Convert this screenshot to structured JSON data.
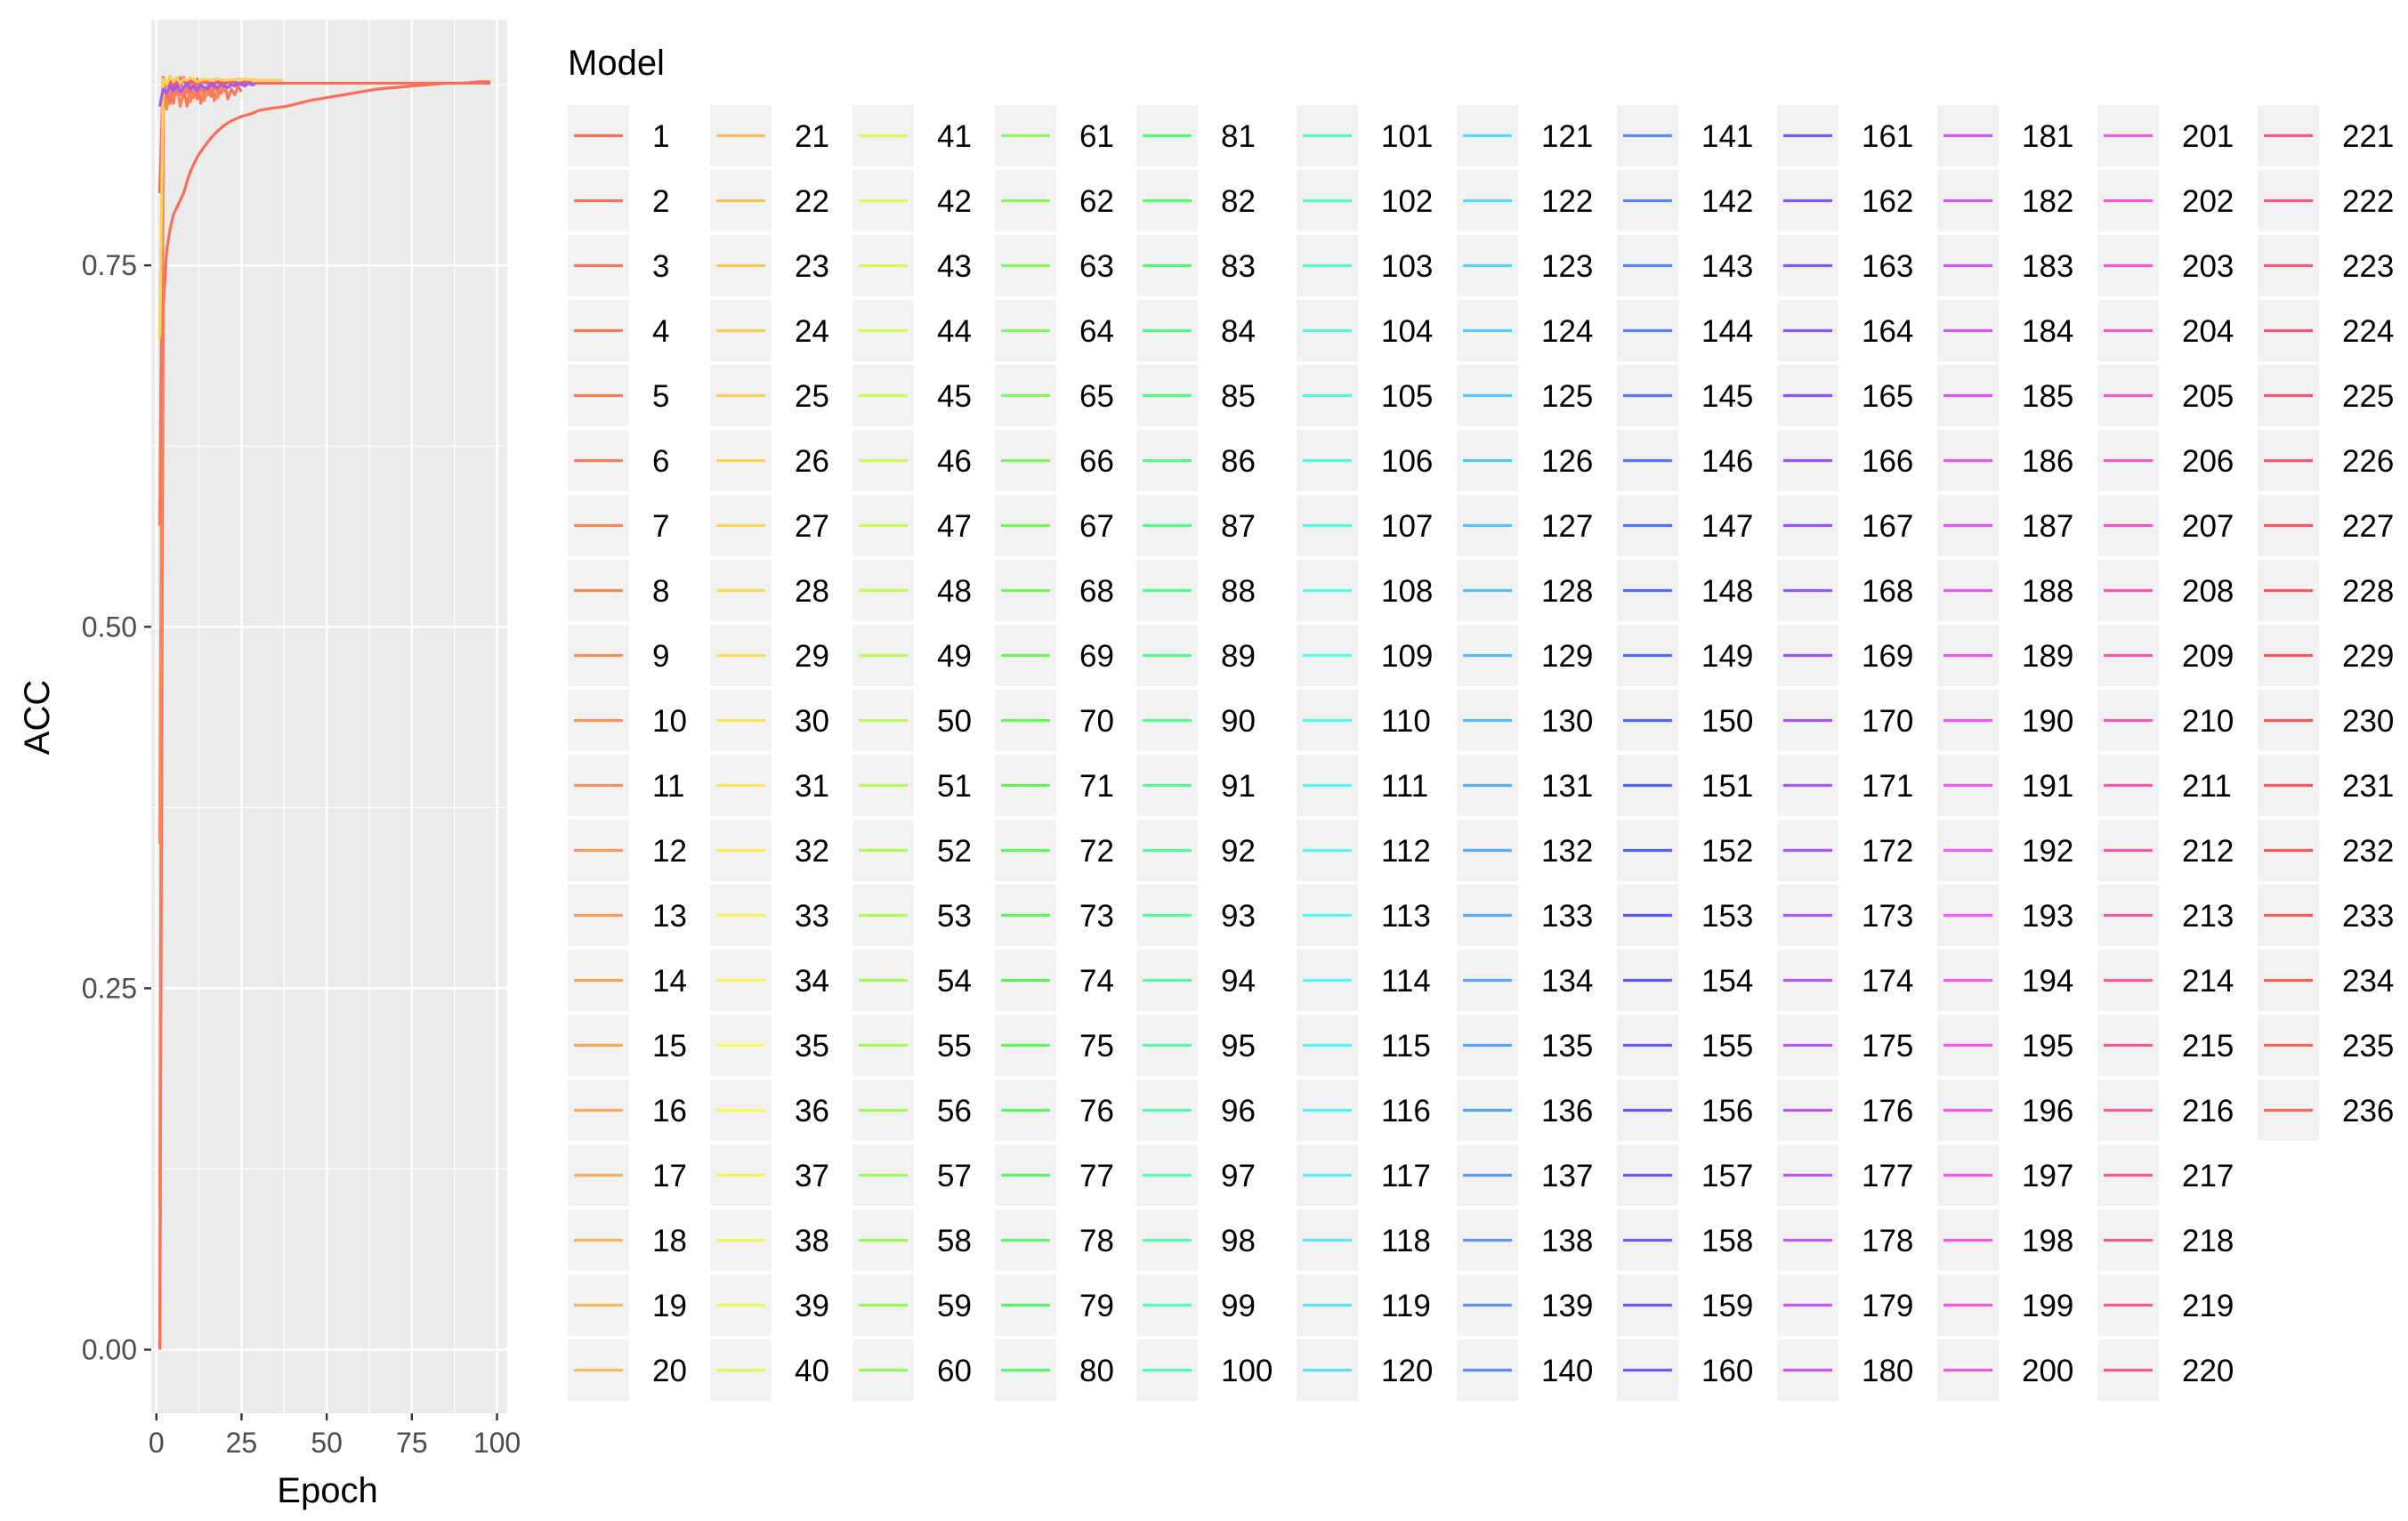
{
  "chart_data": {
    "type": "line",
    "xlabel": "Epoch",
    "ylabel": "ACC",
    "xlim": [
      -1.5,
      103
    ],
    "ylim": [
      -0.044,
      0.92
    ],
    "x_ticks": [
      0,
      25,
      50,
      75,
      100
    ],
    "x_tick_labels": [
      "0",
      "25",
      "50",
      "75",
      "100"
    ],
    "y_ticks": [
      0,
      0.25,
      0.5,
      0.75
    ],
    "y_tick_labels": [
      "0.00",
      "0.25",
      "0.50",
      "0.75"
    ],
    "grid": true,
    "legend": {
      "title": "Model",
      "placement": "right",
      "count": 236,
      "first": 1,
      "last": 236
    },
    "series": [
      {
        "x": [
          1,
          2,
          3,
          4,
          5,
          6,
          7,
          8,
          9,
          10,
          12,
          14,
          16,
          18,
          20,
          22,
          25,
          28,
          30,
          32,
          35,
          38,
          40,
          45,
          50,
          55,
          60,
          65,
          70,
          75,
          80,
          85,
          90,
          95,
          98
        ],
        "y": [
          0.0,
          0.72,
          0.76,
          0.775,
          0.785,
          0.79,
          0.795,
          0.8,
          0.808,
          0.815,
          0.825,
          0.832,
          0.838,
          0.843,
          0.847,
          0.85,
          0.853,
          0.855,
          0.857,
          0.858,
          0.859,
          0.86,
          0.861,
          0.864,
          0.866,
          0.868,
          0.87,
          0.872,
          0.873,
          0.874,
          0.875,
          0.876,
          0.876,
          0.877,
          0.877
        ]
      },
      {
        "x": [
          1,
          2,
          4,
          6,
          8,
          10,
          12,
          15,
          20,
          25,
          30,
          35,
          40,
          50,
          60,
          70,
          80,
          90,
          98
        ],
        "y": [
          0.0,
          0.876,
          0.877,
          0.876,
          0.877,
          0.876,
          0.877,
          0.876,
          0.876,
          0.876,
          0.876,
          0.876,
          0.876,
          0.876,
          0.876,
          0.876,
          0.876,
          0.876,
          0.876
        ]
      },
      {
        "x": [
          1,
          2,
          3,
          4,
          5,
          6,
          7,
          8,
          9,
          10,
          11,
          12,
          13,
          14,
          15,
          16,
          17,
          18,
          19,
          20,
          21,
          22,
          23,
          24,
          25
        ],
        "y": [
          0.1,
          0.88,
          0.865,
          0.875,
          0.862,
          0.878,
          0.868,
          0.872,
          0.86,
          0.874,
          0.866,
          0.879,
          0.862,
          0.871,
          0.868,
          0.877,
          0.864,
          0.873,
          0.869,
          0.876,
          0.865,
          0.872,
          0.868,
          0.874,
          0.87
        ]
      },
      {
        "x": [
          1,
          2,
          3,
          4,
          5,
          6,
          7,
          8,
          9,
          10,
          11,
          12,
          13,
          14,
          15,
          16,
          17,
          18,
          19,
          20
        ],
        "y": [
          0.35,
          0.87,
          0.858,
          0.873,
          0.866,
          0.879,
          0.86,
          0.869,
          0.875,
          0.863,
          0.872,
          0.867,
          0.878,
          0.864,
          0.871,
          0.868,
          0.876,
          0.866,
          0.873,
          0.87
        ]
      },
      {
        "x": [
          1,
          2,
          3,
          4,
          5,
          6,
          7,
          8,
          9,
          10,
          11,
          12,
          13,
          14,
          15,
          16,
          17,
          18
        ],
        "y": [
          0.57,
          0.875,
          0.87,
          0.862,
          0.876,
          0.868,
          0.88,
          0.866,
          0.872,
          0.869,
          0.877,
          0.865,
          0.873,
          0.87,
          0.874,
          0.867,
          0.875,
          0.871
        ]
      },
      {
        "x": [
          1,
          2,
          3,
          4,
          5,
          6,
          7,
          8,
          9,
          10,
          12,
          14,
          16,
          18,
          20,
          22,
          24,
          26,
          28
        ],
        "y": [
          0.8,
          0.88,
          0.874,
          0.878,
          0.872,
          0.879,
          0.876,
          0.88,
          0.874,
          0.878,
          0.876,
          0.879,
          0.875,
          0.877,
          0.876,
          0.878,
          0.876,
          0.877,
          0.877
        ]
      },
      {
        "x": [
          1,
          2,
          3,
          4,
          5,
          6,
          7,
          8,
          9,
          10,
          12,
          14,
          16,
          18,
          20,
          25,
          30,
          35,
          37
        ],
        "y": [
          0.7,
          0.879,
          0.875,
          0.881,
          0.877,
          0.88,
          0.876,
          0.879,
          0.878,
          0.88,
          0.877,
          0.879,
          0.878,
          0.879,
          0.878,
          0.879,
          0.878,
          0.878,
          0.878
        ]
      },
      {
        "x": [
          1,
          2,
          3,
          4,
          5,
          6,
          7,
          8,
          9,
          10,
          11,
          12,
          13,
          14,
          15,
          16,
          17,
          18,
          19,
          20,
          21,
          22,
          23,
          24,
          25,
          26,
          27,
          28,
          29
        ],
        "y": [
          0.86,
          0.872,
          0.869,
          0.874,
          0.871,
          0.875,
          0.87,
          0.873,
          0.876,
          0.872,
          0.874,
          0.871,
          0.875,
          0.873,
          0.872,
          0.876,
          0.874,
          0.873,
          0.875,
          0.874,
          0.873,
          0.875,
          0.874,
          0.876,
          0.875,
          0.874,
          0.876,
          0.875,
          0.875
        ]
      }
    ]
  }
}
